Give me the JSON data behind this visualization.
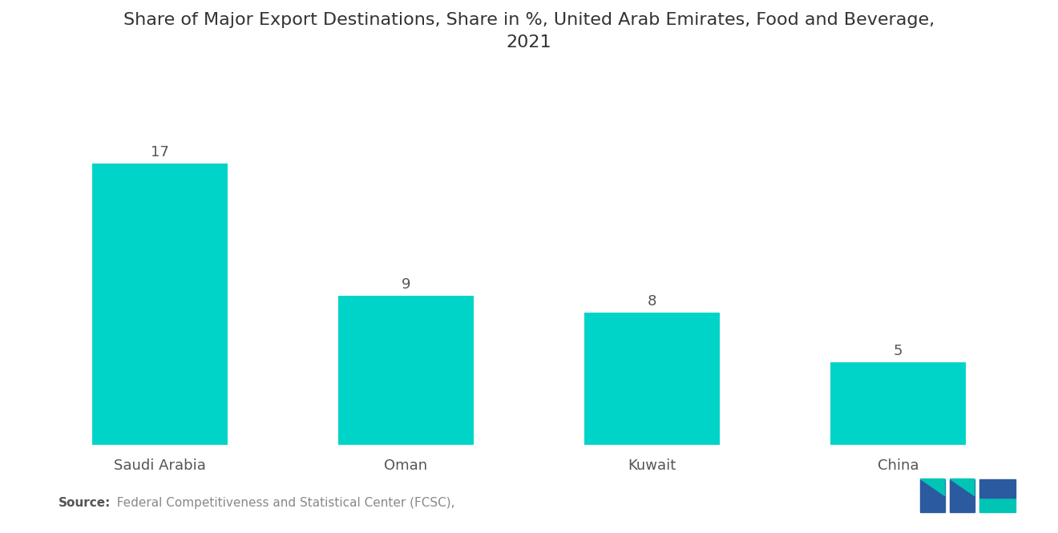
{
  "title": "Share of Major Export Destinations, Share in %, United Arab Emirates, Food and Beverage,\n2021",
  "categories": [
    "Saudi Arabia",
    "Oman",
    "Kuwait",
    "China"
  ],
  "values": [
    17,
    9,
    8,
    5
  ],
  "bar_color": "#00D4C8",
  "background_color": "#ffffff",
  "title_fontsize": 16,
  "label_fontsize": 13,
  "value_fontsize": 13,
  "source_bold": "Source:",
  "source_rest": "  Federal Competitiveness and Statistical Center (FCSC),",
  "ylim": [
    0,
    22
  ],
  "bar_width": 0.55
}
